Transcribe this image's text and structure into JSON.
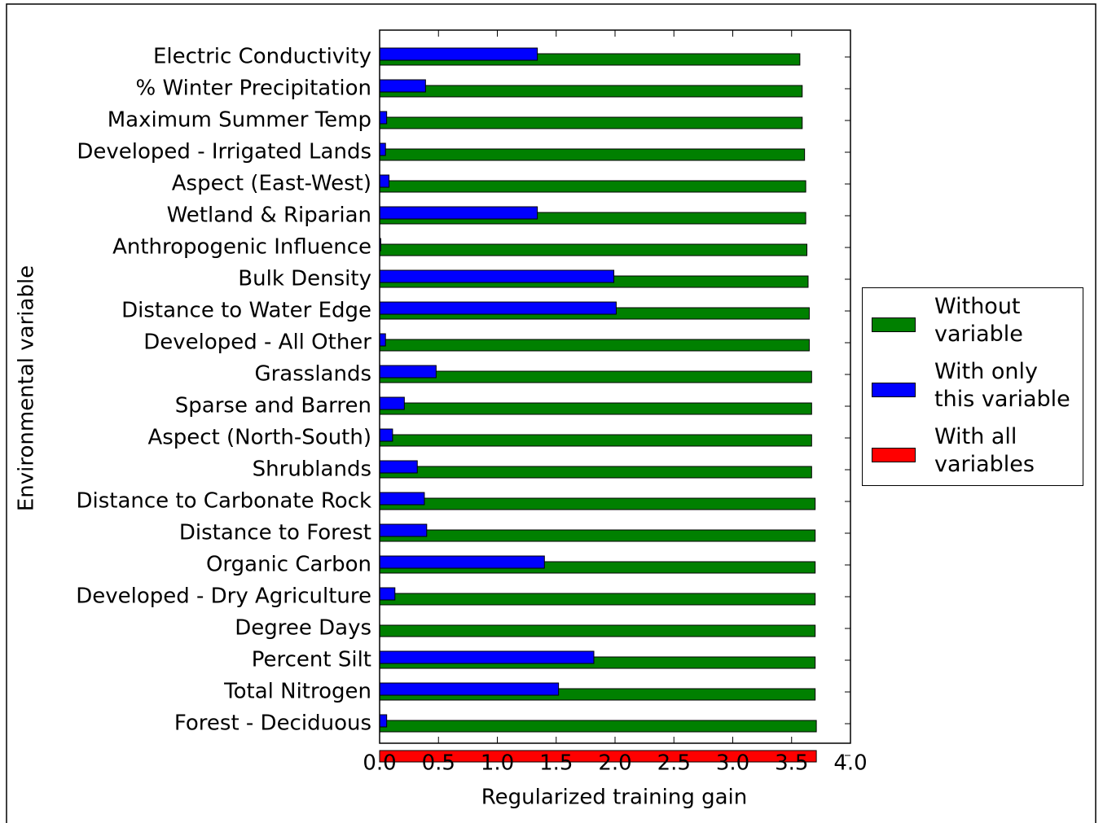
{
  "chart_data": {
    "type": "bar",
    "orientation": "horizontal",
    "x_label": "Regularized training gain",
    "y_label": "Environmental variable",
    "categories": [
      "Electric Conductivity",
      "% Winter Precipitation",
      "Maximum Summer Temp",
      "Developed - Irrigated Lands",
      "Aspect (East-West)",
      "Wetland & Riparian",
      "Anthropogenic Influence",
      "Bulk Density",
      "Distance to Water Edge",
      "Developed - All Other",
      "Grasslands",
      "Sparse and Barren",
      "Aspect (North-South)",
      "Shrublands",
      "Distance to Carbonate Rock",
      "Distance to Forest",
      "Organic Carbon",
      "Developed - Dry Agriculture",
      "Degree Days",
      "Percent Silt",
      "Total Nitrogen",
      "Forest - Deciduous",
      null
    ],
    "series": [
      {
        "name": "Without variable",
        "color": "#008000",
        "values": [
          3.57,
          3.59,
          3.59,
          3.61,
          3.62,
          3.62,
          3.63,
          3.64,
          3.65,
          3.65,
          3.67,
          3.67,
          3.67,
          3.67,
          3.7,
          3.7,
          3.7,
          3.7,
          3.7,
          3.7,
          3.7,
          3.71,
          null
        ]
      },
      {
        "name": "With only this variable",
        "color": "#0000ff",
        "values": [
          1.34,
          0.39,
          0.06,
          0.05,
          0.08,
          1.34,
          0.01,
          1.99,
          2.01,
          0.05,
          0.48,
          0.21,
          0.11,
          0.32,
          0.38,
          0.4,
          1.4,
          0.13,
          0,
          1.82,
          1.52,
          0.06,
          null
        ]
      },
      {
        "name": "With all variables",
        "color": "#ff0000",
        "values": [
          null,
          null,
          null,
          null,
          null,
          null,
          null,
          null,
          null,
          null,
          null,
          null,
          null,
          null,
          null,
          null,
          null,
          null,
          null,
          null,
          null,
          null,
          3.71
        ]
      }
    ],
    "xlim": [
      0,
      4
    ],
    "xticks": [
      {
        "value": 0,
        "label": "0.0"
      },
      {
        "value": 0.5,
        "label": "0.5"
      },
      {
        "value": 1,
        "label": "1.0"
      },
      {
        "value": 1.5,
        "label": "1.5"
      },
      {
        "value": 2,
        "label": "2.0"
      },
      {
        "value": 2.5,
        "label": "2.5"
      },
      {
        "value": 3,
        "label": "3.0"
      },
      {
        "value": 3.5,
        "label": "3.5"
      },
      {
        "value": 4,
        "label": "4.0"
      }
    ],
    "grid": false,
    "legend": "right"
  }
}
